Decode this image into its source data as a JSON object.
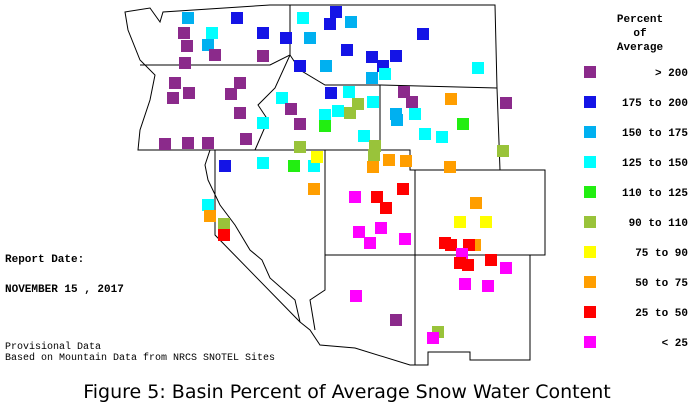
{
  "legend": {
    "title": [
      "Percent",
      "of",
      "Average"
    ],
    "items": [
      {
        "label": "> 200",
        "color": "#8b2a8b"
      },
      {
        "label": "175 to 200",
        "color": "#1414e6"
      },
      {
        "label": "150 to 175",
        "color": "#00b0f0"
      },
      {
        "label": "125 to 150",
        "color": "#00ffff"
      },
      {
        "label": "110 to 125",
        "color": "#22ee11"
      },
      {
        "label": "90 to 110",
        "color": "#99c33a"
      },
      {
        "label": "75 to 90",
        "color": "#ffff00"
      },
      {
        "label": "50 to 75",
        "color": "#ff9e00"
      },
      {
        "label": "25 to 50",
        "color": "#ff0000"
      },
      {
        "label": "< 25",
        "color": "#ff00ff"
      }
    ]
  },
  "report": {
    "label": "Report Date:",
    "date": "NOVEMBER 15 , 2017"
  },
  "notes": [
    "Provisional Data",
    "Based on Mountain Data from NRCS SNOTEL Sites"
  ],
  "caption": "Figure 5: Basin Percent of Average Snow Water Content"
}
